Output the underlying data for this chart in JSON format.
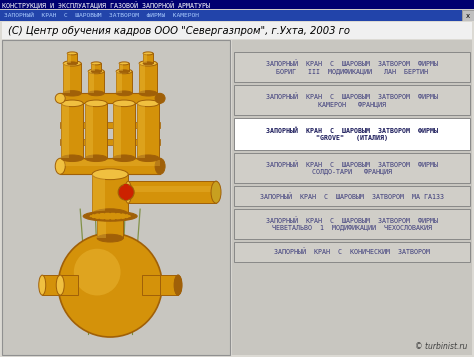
{
  "title_bar": "КОНСТРУКЦИЯ И ЭКСПЛУАТАЦИЯ ГАЗОВОЙ ЗАПОРНОЙ АРМАТУРЫ",
  "menu_bar": "ЗАПОРНЫЙ  КРАН  С  ШАРОВЫМ  ЗАТВОРОМ  ФИРМЫ  КАМЕРОН",
  "subtitle": "(С) Центр обучения кадров ООО \"Севергазпром\", г.Ухта, 2003 го",
  "bg_color": "#d0cec8",
  "title_bg": "#000070",
  "menu_bg": "#2244aa",
  "watermark": "© turbinist.ru",
  "buttons": [
    {
      "text": "ЗАПОРНЫЙ  КРАН  С  ШАРОВЫМ  ЗАТВОРОМ  ФИРМЫ\nБОРИГ   III  МОДИФИКАЦИИ   ЛАН  БЕРТИН",
      "bold": false
    },
    {
      "text": "ЗАПОРНЫЙ  КРАН  С  ШАРОВЫМ  ЗАТВОРОМ  ФИРМЫ\nКАМЕРОН   ФРАНЦИЯ",
      "bold": false
    },
    {
      "text": "ЗАПОРНЫЙ  КРАН  С  ШАРОВЫМ  ЗАТВОРОМ  ФИРМЫ\n\"GROVE\"   (ИТАЛИЯ)",
      "bold": true
    },
    {
      "text": "ЗАПОРНЫЙ  КРАН  С  ШАРОВЫМ  ЗАТВОРОМ  ФИРМЫ\nСОЛДО-ТАРИ   ФРАНЦИЯ",
      "bold": false
    },
    {
      "text": "ЗАПОРНЫЙ  КРАН  С  ШАРОВЫМ  ЗАТВОРОМ  МА ГА133",
      "bold": false
    },
    {
      "text": "ЗАПОРНЫЙ  КРАН  С  ШАРОВЫМ  ЗАТВОРОМ  ФИРМЫ\nЧЕВЕТАЛЬВО  1  МОДИФИКАЦИИ  ЧЕХОСЛОВАКИЯ",
      "bold": false
    },
    {
      "text": "ЗАПОРНЫЙ  КРАН  С  КОНИЧЕСКИМ  ЗАТВОРОМ",
      "bold": false
    }
  ],
  "mc": "#d4920a",
  "dk": "#a06008",
  "lc": "#f0c040",
  "pipe_color": "#808060"
}
